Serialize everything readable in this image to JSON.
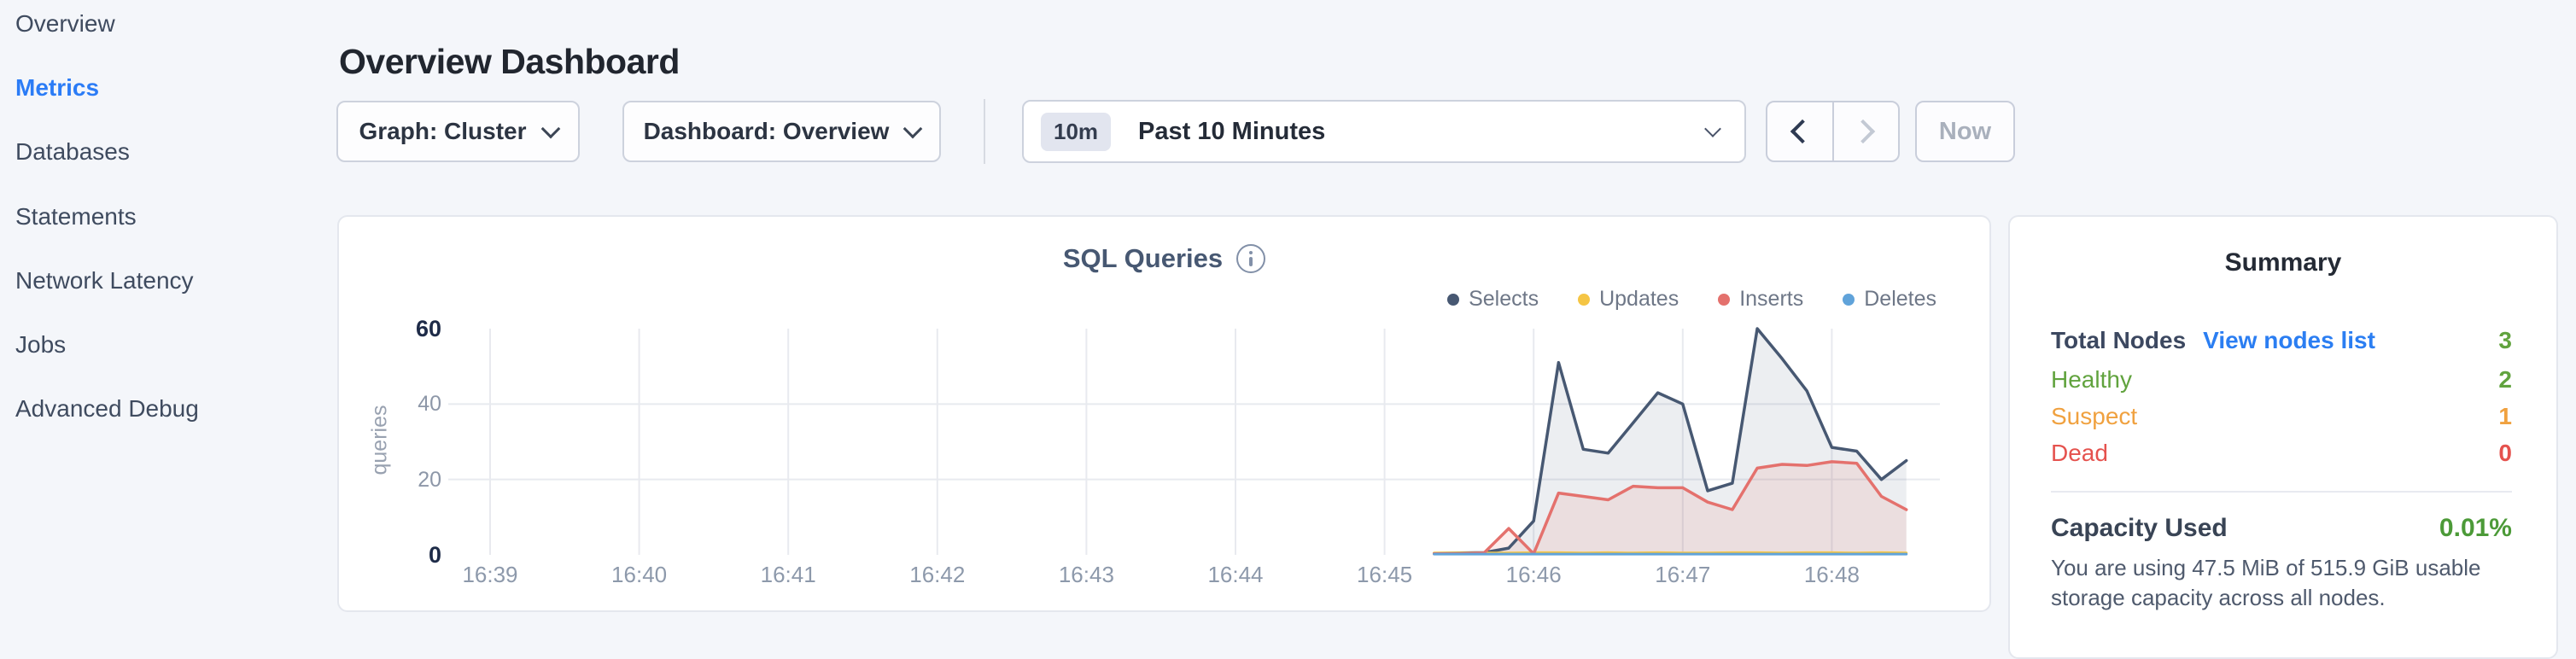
{
  "sidebar": {
    "items": [
      {
        "label": "Overview",
        "active": false
      },
      {
        "label": "Metrics",
        "active": true
      },
      {
        "label": "Databases",
        "active": false
      },
      {
        "label": "Statements",
        "active": false
      },
      {
        "label": "Network Latency",
        "active": false
      },
      {
        "label": "Jobs",
        "active": false
      },
      {
        "label": "Advanced Debug",
        "active": false
      }
    ],
    "active_color": "#2b7cf6"
  },
  "header": {
    "title": "Overview Dashboard"
  },
  "toolbar": {
    "graph_label": "Graph: Cluster",
    "dashboard_label": "Dashboard: Overview",
    "time_badge": "10m",
    "time_range": "Past 10 Minutes",
    "now_label": "Now"
  },
  "chart_data": {
    "type": "area",
    "title": "SQL Queries",
    "ylabel": "queries",
    "ylim": [
      0,
      60
    ],
    "yticks": [
      0,
      20,
      40,
      60
    ],
    "ytick_emphasis": [
      0,
      60
    ],
    "grid": true,
    "legend_position": "top-right",
    "x_ticks": [
      {
        "min": 0,
        "label": "16:39"
      },
      {
        "min": 1,
        "label": "16:40"
      },
      {
        "min": 2,
        "label": "16:41"
      },
      {
        "min": 3,
        "label": "16:42"
      },
      {
        "min": 4,
        "label": "16:43"
      },
      {
        "min": 5,
        "label": "16:44"
      },
      {
        "min": 6,
        "label": "16:45"
      },
      {
        "min": 7,
        "label": "16:46"
      },
      {
        "min": 8,
        "label": "16:47"
      },
      {
        "min": 9,
        "label": "16:48"
      }
    ],
    "x_minutes_after_1639": [
      6.333,
      6.5,
      6.667,
      6.833,
      7.0,
      7.167,
      7.333,
      7.5,
      7.667,
      7.833,
      8.0,
      8.167,
      8.333,
      8.5,
      8.667,
      8.833,
      9.0,
      9.167,
      9.333,
      9.5
    ],
    "series": [
      {
        "name": "Selects",
        "color": "#475872",
        "fill": "rgba(71,88,114,0.10)",
        "stroke_width": 3.5,
        "values": [
          0.4,
          0.5,
          0.6,
          1.8,
          9,
          51,
          28,
          27,
          35,
          43,
          40,
          17,
          19,
          60,
          52,
          43.5,
          28.5,
          27.5,
          20,
          25
        ]
      },
      {
        "name": "Updates",
        "color": "#f5c544",
        "fill": "none",
        "stroke_width": 3,
        "values": [
          0.5,
          0.5,
          0.5,
          0.5,
          0.6,
          0.6,
          0.5,
          0.6,
          0.5,
          0.6,
          0.5,
          0.5,
          0.6,
          0.6,
          0.5,
          0.6,
          0.6,
          0.5,
          0.6,
          0.5
        ]
      },
      {
        "name": "Inserts",
        "color": "#e4716d",
        "fill": "rgba(228,113,109,0.13)",
        "stroke_width": 3.5,
        "values": [
          0.3,
          0.3,
          0.5,
          7,
          0.3,
          16.4,
          15.5,
          14.6,
          18.2,
          17.8,
          17.8,
          14,
          12,
          23,
          24,
          23.7,
          24.7,
          24.3,
          15.5,
          12
        ]
      },
      {
        "name": "Deletes",
        "color": "#60a3da",
        "fill": "none",
        "stroke_width": 3,
        "values": [
          0.2,
          0.2,
          0.2,
          0.2,
          0.2,
          0.2,
          0.2,
          0.2,
          0.2,
          0.2,
          0.2,
          0.2,
          0.2,
          0.2,
          0.2,
          0.2,
          0.2,
          0.2,
          0.2,
          0.2
        ]
      }
    ]
  },
  "summary": {
    "title": "Summary",
    "rows": [
      {
        "label": "Total Nodes",
        "label_color": "#3c4860",
        "label_bold": true,
        "link": "View nodes list",
        "value": "3",
        "value_color": "#61a33e"
      },
      {
        "label": "Healthy",
        "label_color": "#61a33e",
        "label_bold": false,
        "link": null,
        "value": "2",
        "value_color": "#61a33e"
      },
      {
        "label": "Suspect",
        "label_color": "#f0a13f",
        "label_bold": false,
        "link": null,
        "value": "1",
        "value_color": "#f0a13f"
      },
      {
        "label": "Dead",
        "label_color": "#e5524e",
        "label_bold": false,
        "link": null,
        "value": "0",
        "value_color": "#e5524e"
      }
    ],
    "capacity": {
      "label": "Capacity Used",
      "value": "0.01%",
      "value_color": "#4c9a38",
      "description": "You are using 47.5 MiB of 515.9 GiB usable storage capacity across all nodes."
    }
  }
}
